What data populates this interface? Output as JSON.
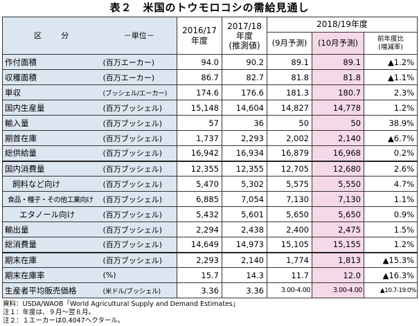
{
  "title": "表２　米国のトウモロコシの需給見通し",
  "header": {
    "item": "区　　分",
    "unit": "－単位－",
    "y2016": "2016/17\n年度",
    "y2017_line1": "2017/18",
    "y2017_line2": "年度",
    "y2017_line3": "(推測値)",
    "y2018": "2018/19年度",
    "sep": "(9月予測)",
    "oct": "(10月予測)",
    "ratio_line1": "前年度比",
    "ratio_line2": "(増減率)"
  },
  "rows": [
    {
      "item": "作付面積",
      "unit": "(百万エーカー)",
      "v2016": "94.0",
      "v2017": "90.2",
      "sep": "89.1",
      "oct": "89.1",
      "ratio": "▲1.2%"
    },
    {
      "item": "収穫面積",
      "unit": "(百万エーカー)",
      "v2016": "86.7",
      "v2017": "82.7",
      "sep": "81.8",
      "oct": "81.8",
      "ratio": "▲1.1%"
    },
    {
      "item": "単収",
      "unit": "(ブッシェル/エーカー)",
      "v2016": "174.6",
      "v2017": "176.6",
      "sep": "181.3",
      "oct": "180.7",
      "ratio": "2.3%"
    },
    {
      "item": "国内生産量",
      "unit": "(百万ブッシェル)",
      "v2016": "15,148",
      "v2017": "14,604",
      "sep": "14,827",
      "oct": "14,778",
      "ratio": "1.2%"
    },
    {
      "item": "輸入量",
      "unit": "(百万ブッシェル)",
      "v2016": "57",
      "v2017": "36",
      "sep": "50",
      "oct": "50",
      "ratio": "38.9%"
    },
    {
      "item": "期首在庫",
      "unit": "(百万ブッシェル)",
      "v2016": "1,737",
      "v2017": "2,293",
      "sep": "2,002",
      "oct": "2,140",
      "ratio": "▲6.7%"
    },
    {
      "item": "総供給量",
      "unit": "(百万ブッシェル)",
      "v2016": "16,942",
      "v2017": "16,934",
      "sep": "16,879",
      "oct": "16,968",
      "ratio": "0.2%"
    },
    {
      "item": "国内消費量",
      "unit": "(百万ブッシェル)",
      "v2016": "12,355",
      "v2017": "12,355",
      "sep": "12,705",
      "oct": "12,680",
      "ratio": "2.6%"
    },
    {
      "item": "飼料など向け",
      "unit": "(百万ブッシェル)",
      "v2016": "5,470",
      "v2017": "5,302",
      "sep": "5,575",
      "oct": "5,550",
      "ratio": "4.7%"
    },
    {
      "item": "食品・種子・その他工業向け",
      "unit": "(百万ブッシェル)",
      "v2016": "6,885",
      "v2017": "7,054",
      "sep": "7,130",
      "oct": "7,130",
      "ratio": "1.1%"
    },
    {
      "item": "エタノール向け",
      "unit": "(百万ブッシェル)",
      "v2016": "5,432",
      "v2017": "5,601",
      "sep": "5,650",
      "oct": "5,650",
      "ratio": "0.9%"
    },
    {
      "item": "輸出量",
      "unit": "(百万ブッシェル)",
      "v2016": "2,294",
      "v2017": "2,438",
      "sep": "2,400",
      "oct": "2,475",
      "ratio": "1.5%"
    },
    {
      "item": "総消費量",
      "unit": "(百万ブッシェル)",
      "v2016": "14,649",
      "v2017": "14,973",
      "sep": "15,105",
      "oct": "15,155",
      "ratio": "1.2%"
    },
    {
      "item": "期末在庫",
      "unit": "(百万ブッシェル)",
      "v2016": "2,293",
      "v2017": "2,140",
      "sep": "1,774",
      "oct": "1,813",
      "ratio": "▲15.3%"
    },
    {
      "item": "期末在庫率",
      "unit": "(%)",
      "v2016": "15.7",
      "v2017": "14.3",
      "sep": "11.7",
      "oct": "12.0",
      "ratio": "▲16.3%"
    },
    {
      "item": "生産者平均販売価格",
      "unit": "(米ドル/ブッシェル)",
      "v2016": "3.36",
      "v2017": "3.36",
      "sep": "3.00-4.00",
      "oct": "3.00-4.00",
      "ratio": "▲10.7-19.0%"
    }
  ],
  "notes": [
    "資料：USDA/WAOB「World Agricultural Supply and Demand Estimates」",
    "注１：年度は、９月～翌８月。",
    "注２：１エーカーは0.4047ヘクタール。"
  ],
  "colors": {
    "header_bg": "#dce6f0",
    "highlight_bg": "#f6d9e8",
    "border": "#333333"
  }
}
